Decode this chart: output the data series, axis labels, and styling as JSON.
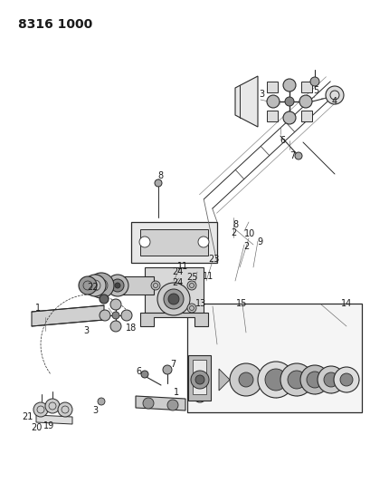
{
  "title_text": "8316 1000",
  "bg_color": "#ffffff",
  "line_color": "#2a2a2a",
  "text_color": "#1a1a1a",
  "label_fontsize": 7,
  "title_fontsize": 10,
  "figsize": [
    4.1,
    5.33
  ],
  "dpi": 100
}
